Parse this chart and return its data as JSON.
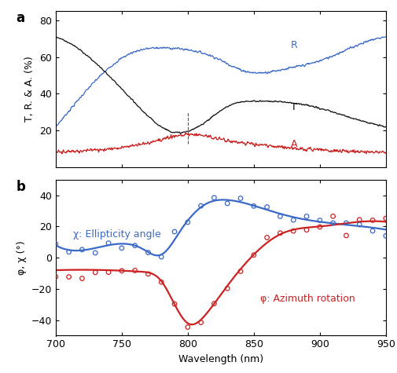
{
  "title_a": "a",
  "title_b": "b",
  "xlabel": "Wavelength (nm)",
  "ylabel_a": "T, R. & A. (%)",
  "ylabel_b": "φ, χ (°)",
  "xlim": [
    700,
    950
  ],
  "ylim_a": [
    0,
    85
  ],
  "ylim_b": [
    -50,
    50
  ],
  "yticks_a": [
    20,
    40,
    60,
    80
  ],
  "yticks_b": [
    -40,
    -20,
    0,
    20,
    40
  ],
  "xticks": [
    700,
    750,
    800,
    850,
    900,
    950
  ],
  "dashed_x": 800,
  "color_R": "#3a69c7",
  "color_T": "#111111",
  "color_A": "#cc2222",
  "color_blue": "#3a69c7",
  "color_red": "#cc2222",
  "label_R": "R",
  "label_T": "T",
  "label_A": "A",
  "label_chi": "χ: Ellipticity angle",
  "label_phi": "φ: Azimuth rotation",
  "noise_scale_R": 0.5,
  "noise_scale_T": 0.3,
  "noise_scale_A": 0.6
}
